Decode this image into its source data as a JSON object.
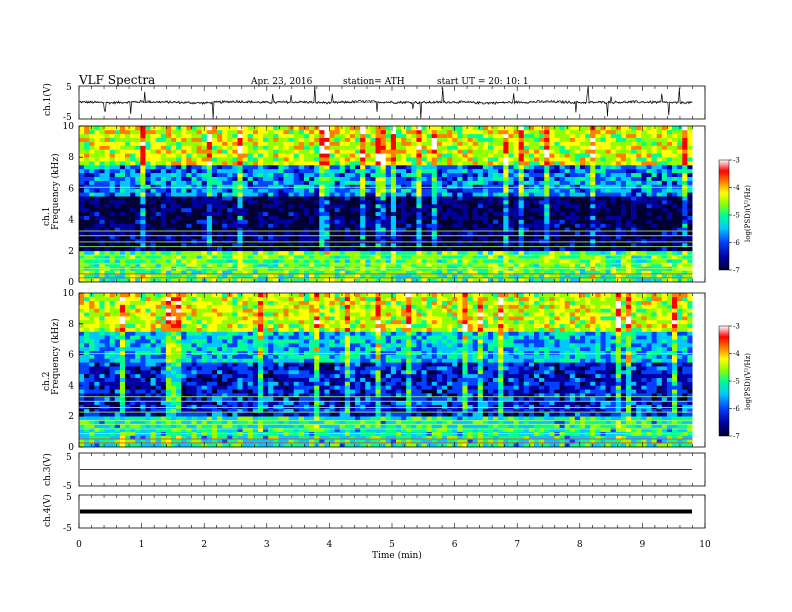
{
  "header": {
    "title": "VLF  Spectra",
    "date": "Apr. 23, 2016",
    "station": "station= ATH",
    "start": "start  UT  =   20: 10: 1"
  },
  "chart_data": [
    {
      "type": "line",
      "panel": "ch.1",
      "ylabel": "ch.1(V)",
      "ylim": [
        -5,
        5
      ],
      "yticks": [
        "5",
        "-5"
      ],
      "x": [
        0,
        0.5,
        1,
        1.5,
        2,
        2.5,
        3,
        3.5,
        4,
        4.5,
        5,
        5.5,
        6,
        6.5,
        7,
        7.5,
        8,
        8.5,
        9,
        9.5,
        9.8
      ],
      "y": [
        0.2,
        -0.1,
        0.3,
        0.1,
        -0.2,
        0.4,
        0.0,
        0.2,
        -0.1,
        0.3,
        0.1,
        0.0,
        0.2,
        -0.2,
        0.1,
        0.3,
        0.0,
        0.1,
        0.2,
        -0.1,
        0.0
      ],
      "note_y_range": "approx -1.5 to 1.5 with impulsive spikes reaching ±5"
    },
    {
      "type": "heatmap",
      "panel": "ch.1",
      "ylabel": "ch.1\nFrequency (kHz)",
      "ylim": [
        0,
        10
      ],
      "yticks": [
        "0",
        "2",
        "4",
        "6",
        "8",
        "10"
      ],
      "colorbar": {
        "label": "log(PSD)(V²/Hz)",
        "range": [
          -7,
          -3
        ],
        "ticks": [
          "-3",
          "-4",
          "-5",
          "-6",
          "-7"
        ]
      },
      "bands": [
        {
          "from_khz": 0,
          "to_khz": 2,
          "level": -5.0
        },
        {
          "from_khz": 2,
          "to_khz": 5.5,
          "level": -6.7
        },
        {
          "from_khz": 5.5,
          "to_khz": 7.5,
          "level": -5.8
        },
        {
          "from_khz": 7.5,
          "to_khz": 10,
          "level": -4.6
        }
      ]
    },
    {
      "type": "heatmap",
      "panel": "ch.2",
      "ylabel": "ch.2\nFrequency (kHz)",
      "ylim": [
        0,
        10
      ],
      "yticks": [
        "0",
        "2",
        "4",
        "6",
        "8",
        "10"
      ],
      "colorbar": {
        "label": "log(PSD)(V²/Hz)",
        "range": [
          -7,
          -3
        ],
        "ticks": [
          "-3",
          "-4",
          "-5",
          "-6",
          "-7"
        ]
      },
      "bands": [
        {
          "from_khz": 0,
          "to_khz": 2,
          "level": -5.3
        },
        {
          "from_khz": 2,
          "to_khz": 5.5,
          "level": -6.2
        },
        {
          "from_khz": 5.5,
          "to_khz": 7.5,
          "level": -5.6
        },
        {
          "from_khz": 7.5,
          "to_khz": 10,
          "level": -4.6
        }
      ]
    },
    {
      "type": "line",
      "panel": "ch.3",
      "ylabel": "ch.3(V)",
      "ylim": [
        -5,
        5
      ],
      "yticks": [
        "5",
        "-5"
      ],
      "x": [
        0,
        9.8
      ],
      "y": [
        0,
        0
      ]
    },
    {
      "type": "line",
      "panel": "ch.4",
      "ylabel": "ch.4(V)",
      "ylim": [
        -5,
        5
      ],
      "yticks": [
        "5",
        "-5"
      ],
      "x": [
        0,
        9.8
      ],
      "y": [
        0,
        0
      ]
    }
  ],
  "xaxis": {
    "label": "Time  (min)",
    "range": [
      0,
      10
    ],
    "ticks": [
      "0",
      "1",
      "2",
      "3",
      "4",
      "5",
      "6",
      "7",
      "8",
      "9",
      "10"
    ]
  },
  "colors": {
    "colormap": [
      "#000033",
      "#0000a0",
      "#0040ff",
      "#00c8ff",
      "#00ff90",
      "#90ff00",
      "#ffff00",
      "#ff8000",
      "#ff0000",
      "#ffffff"
    ],
    "trace": "#000000"
  }
}
